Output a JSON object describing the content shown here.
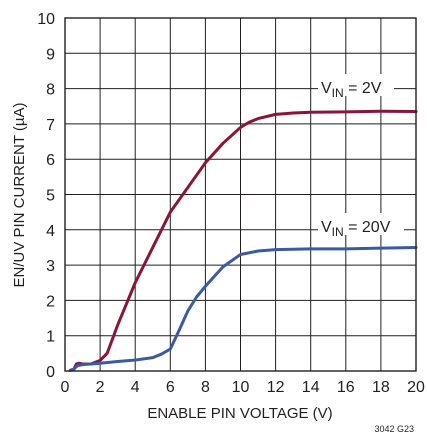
{
  "chart_data": {
    "type": "line",
    "xlabel": "ENABLE PIN VOLTAGE (V)",
    "ylabel": "EN/UV PIN CURRENT (µA)",
    "xlim": [
      0,
      20
    ],
    "ylim": [
      0,
      10
    ],
    "xticks": [
      "0",
      "2",
      "4",
      "6",
      "8",
      "10",
      "12",
      "14",
      "16",
      "18",
      "20"
    ],
    "yticks": [
      "0",
      "1",
      "2",
      "3",
      "4",
      "5",
      "6",
      "7",
      "8",
      "9",
      "10"
    ],
    "grid": true,
    "series": [
      {
        "name": "VIN = 2V",
        "label_main": "V",
        "label_sub": "IN",
        "label_rest": " = 2V",
        "color": "#8b1538",
        "x": [
          0.3,
          0.5,
          0.65,
          0.8,
          1.0,
          1.5,
          2.0,
          2.4,
          3.0,
          4.0,
          5.0,
          6.0,
          7.0,
          8.0,
          9.0,
          10.0,
          10.5,
          11.0,
          12.0,
          13.0,
          14.0,
          16.0,
          18.0,
          20.0
        ],
        "y": [
          0.02,
          0.05,
          0.2,
          0.22,
          0.2,
          0.2,
          0.3,
          0.5,
          1.3,
          2.5,
          3.5,
          4.5,
          5.2,
          5.9,
          6.45,
          6.9,
          7.05,
          7.15,
          7.27,
          7.31,
          7.33,
          7.34,
          7.36,
          7.35
        ]
      },
      {
        "name": "VIN = 20V",
        "label_main": "V",
        "label_sub": "IN",
        "label_rest": " = 20V",
        "color": "#3b5aa4",
        "x": [
          0.3,
          0.5,
          0.7,
          1.0,
          2.0,
          3.0,
          4.0,
          5.0,
          5.5,
          6.0,
          6.5,
          7.0,
          7.5,
          8.0,
          9.0,
          10.0,
          11.0,
          12.0,
          14.0,
          16.0,
          18.0,
          20.0
        ],
        "y": [
          0.02,
          0.05,
          0.15,
          0.18,
          0.22,
          0.27,
          0.31,
          0.38,
          0.48,
          0.62,
          1.15,
          1.7,
          2.1,
          2.4,
          2.95,
          3.3,
          3.4,
          3.44,
          3.46,
          3.46,
          3.48,
          3.5
        ]
      }
    ]
  },
  "footnote": "3042 G23"
}
